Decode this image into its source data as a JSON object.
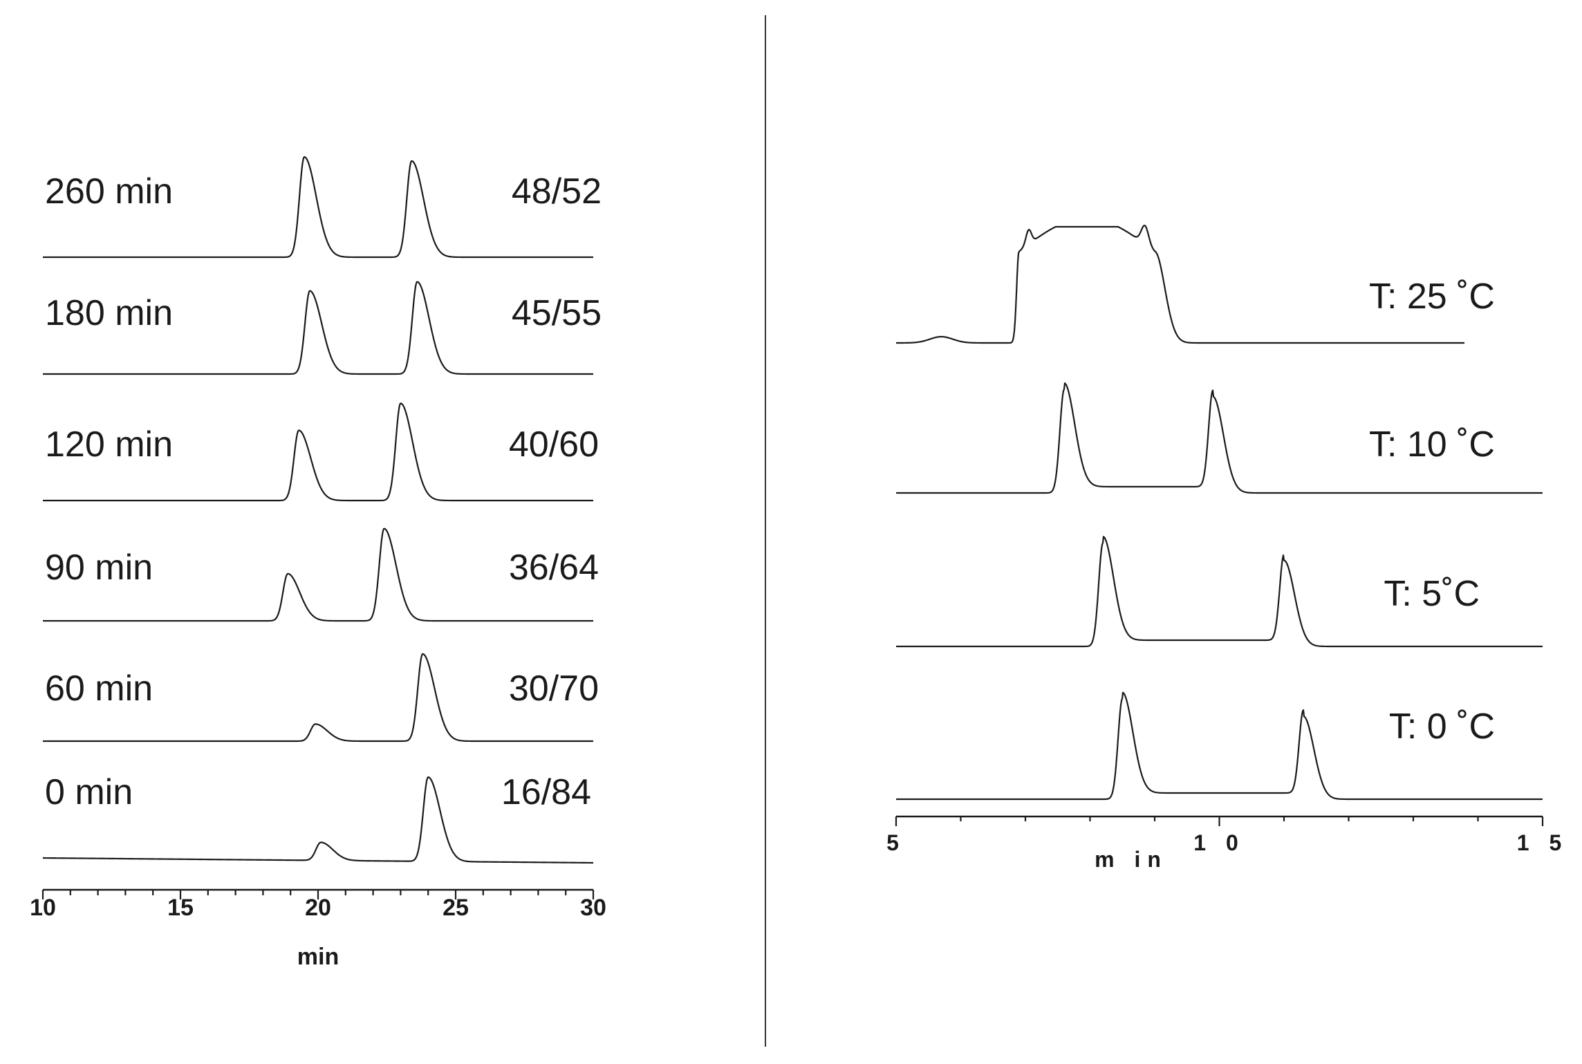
{
  "chart_data": [
    {
      "type": "line",
      "title": "",
      "xlabel": "min",
      "ylabel": "",
      "xlim": [
        10,
        30
      ],
      "xticks": [
        10,
        15,
        20,
        25,
        30
      ],
      "grid": false,
      "series": [
        {
          "name": "260 min",
          "ratio": "48/52",
          "peaks": [
            {
              "x": 19.5,
              "height": 1.0
            },
            {
              "x": 23.4,
              "height": 0.96
            }
          ]
        },
        {
          "name": "180 min",
          "ratio": "45/55",
          "peaks": [
            {
              "x": 19.7,
              "height": 0.83
            },
            {
              "x": 23.6,
              "height": 0.92
            }
          ]
        },
        {
          "name": "120 min",
          "ratio": "40/60",
          "peaks": [
            {
              "x": 19.3,
              "height": 0.7
            },
            {
              "x": 23.0,
              "height": 0.97
            }
          ]
        },
        {
          "name": "90 min",
          "ratio": "36/64",
          "peaks": [
            {
              "x": 18.9,
              "height": 0.47
            },
            {
              "x": 22.4,
              "height": 0.92
            }
          ]
        },
        {
          "name": "60 min",
          "ratio": "30/70",
          "peaks": [
            {
              "x": 19.9,
              "height": 0.17
            },
            {
              "x": 23.8,
              "height": 0.87
            }
          ]
        },
        {
          "name": "0 min",
          "ratio": "16/84",
          "peaks": [
            {
              "x": 20.1,
              "height": 0.18
            },
            {
              "x": 24.0,
              "height": 0.84
            }
          ]
        }
      ]
    },
    {
      "type": "line",
      "title": "",
      "xlabel": "m in",
      "ylabel": "",
      "xlim": [
        5,
        15
      ],
      "xticks": [
        5,
        10,
        15
      ],
      "xtick_labels": [
        "5",
        "1 0",
        "1 5"
      ],
      "grid": false,
      "series": [
        {
          "name": "T: 25 ˚C",
          "x_end": 13.8,
          "profile": "plateau",
          "plateau_start": 6.9,
          "plateau_end": 9.0,
          "small_bump": 5.7
        },
        {
          "name": "T: 10 ˚C",
          "peaks": [
            {
              "x": 7.6,
              "height": 1.0
            },
            {
              "x": 9.9,
              "height": 0.93
            }
          ]
        },
        {
          "name": "T: 5˚C",
          "peaks": [
            {
              "x": 8.2,
              "height": 1.0
            },
            {
              "x": 11.0,
              "height": 0.83
            }
          ]
        },
        {
          "name": "T: 0 ˚C",
          "peaks": [
            {
              "x": 8.5,
              "height": 0.97
            },
            {
              "x": 11.3,
              "height": 0.8
            }
          ]
        }
      ]
    }
  ]
}
